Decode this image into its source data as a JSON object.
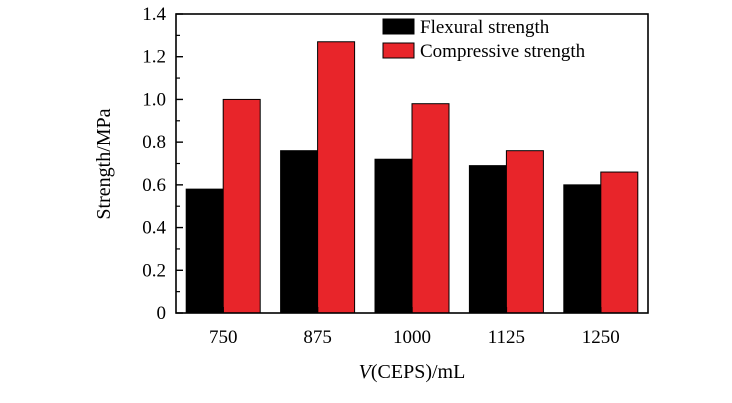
{
  "chart_data": {
    "type": "bar",
    "title": "",
    "xlabel": {
      "italic": "V",
      "rest": "(CEPS)/mL"
    },
    "ylabel": "Strength/MPa",
    "categories": [
      "750",
      "875",
      "1000",
      "1125",
      "1250"
    ],
    "series": [
      {
        "name": "Flexural strength",
        "color": "#000000",
        "values": [
          0.58,
          0.76,
          0.72,
          0.69,
          0.6
        ]
      },
      {
        "name": "Compressive strength",
        "color": "#e8252a",
        "values": [
          1.0,
          1.27,
          0.98,
          0.76,
          0.66
        ]
      }
    ],
    "ylim": [
      0,
      1.4
    ],
    "yticks": [
      "0",
      "0.2",
      "0.4",
      "0.6",
      "0.8",
      "1.0",
      "1.2",
      "1.4"
    ],
    "grid": false,
    "legend": "top-right"
  }
}
